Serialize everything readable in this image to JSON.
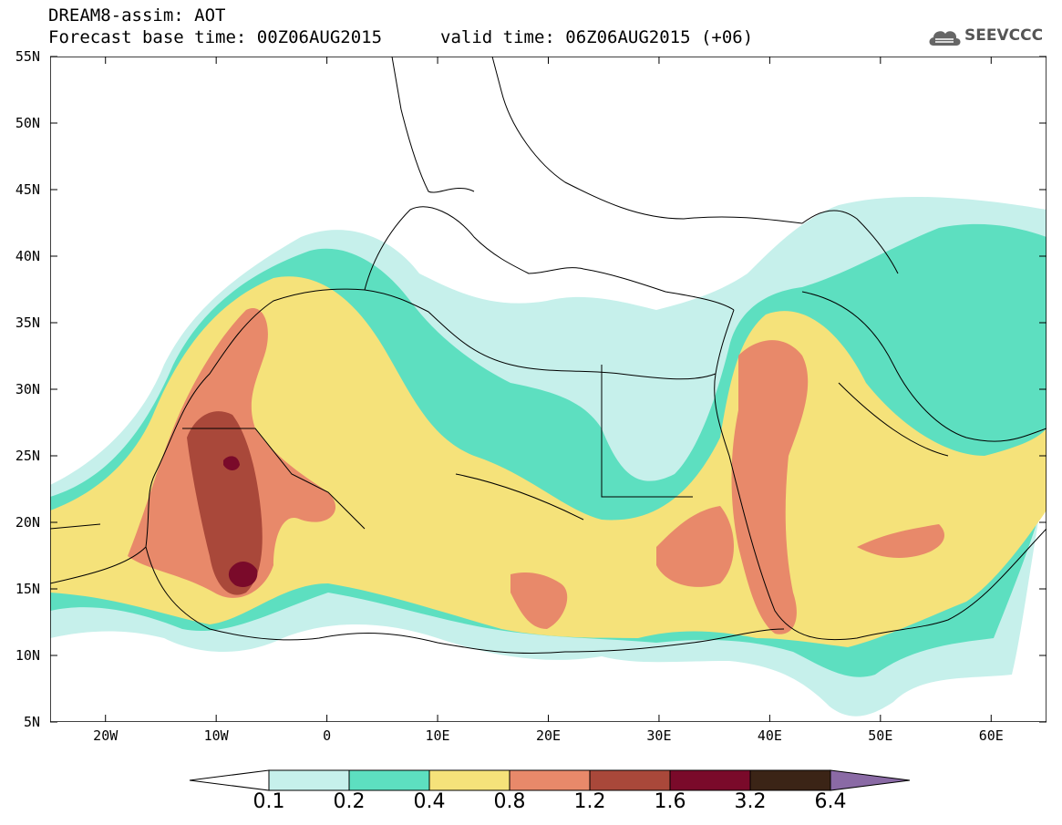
{
  "title": {
    "line1": "DREAM8-assim: AOT",
    "line2": "Forecast base time: 00Z06AUG2015",
    "valid": "valid time: 06Z06AUG2015 (+06)"
  },
  "logo": {
    "text": "SEEVCCC",
    "icon": "cloud-icon"
  },
  "axes": {
    "lat_labels": [
      "55N",
      "50N",
      "45N",
      "40N",
      "35N",
      "30N",
      "25N",
      "20N",
      "15N",
      "10N",
      "5N"
    ],
    "lon_labels": [
      "20W",
      "10W",
      "0",
      "10E",
      "20E",
      "30E",
      "40E",
      "50E",
      "60E"
    ],
    "lat_range": [
      5,
      55
    ],
    "lon_range": [
      -25,
      65
    ]
  },
  "colorbar": {
    "labels": [
      "0.1",
      "0.2",
      "0.4",
      "0.8",
      "1.2",
      "1.6",
      "3.2",
      "6.4"
    ],
    "colors": [
      "#c6f0eb",
      "#5ddfc0",
      "#f5e27a",
      "#e8896a",
      "#a9483a",
      "#7a0a2a",
      "#3b2416",
      "#8a6aa5"
    ]
  }
}
